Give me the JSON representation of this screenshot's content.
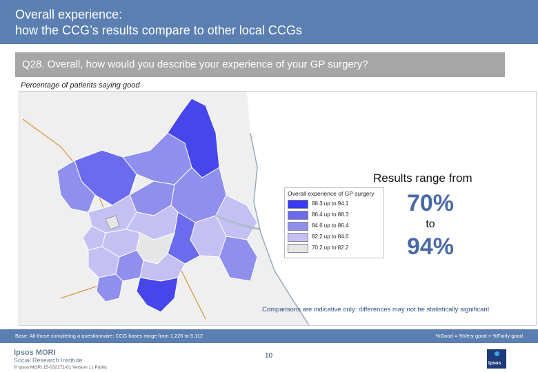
{
  "header": {
    "title_line1": "Overall experience:",
    "title_line2": "how the CCG’s results compare to other local CCGs"
  },
  "question": "Q28. Overall, how would you describe your experience of your GP surgery?",
  "subtitle": "Percentage of patients saying good",
  "legend": {
    "title": "Overall experience of GP surgery",
    "items": [
      {
        "label": "88.3 up to 94.1",
        "color": "#3a3af0"
      },
      {
        "label": "86.4 up to 88.3",
        "color": "#6b6bee"
      },
      {
        "label": "84.6 up to 86.4",
        "color": "#8f8fee"
      },
      {
        "label": "82.2 up to 84.6",
        "color": "#c4c0f4"
      },
      {
        "label": "70.2 up to 82.2",
        "color": "#e6e6e6"
      }
    ]
  },
  "results": {
    "intro": "Results range from",
    "low": "70%",
    "to": "to",
    "high": "94%"
  },
  "caveat": "Comparisons are indicative only: differences may not be statistically significant",
  "footer": {
    "base": "Base: All those completing a questionnaire: CCG bases range from 1,226 to 9,112",
    "definition": "%Good = %Very good + %Fairly good",
    "logo_line1": "Ipsos MORI",
    "logo_line2": "Social Research Institute",
    "copyright": "© Ipsos MORI     15-032172-01 Version 1 | Public",
    "page_number": "10",
    "corner_logo_text": "Ipsos"
  },
  "map_colors": {
    "land": "#eeeeee",
    "coast": "#9aa8b8",
    "road": "#d9a55a"
  }
}
